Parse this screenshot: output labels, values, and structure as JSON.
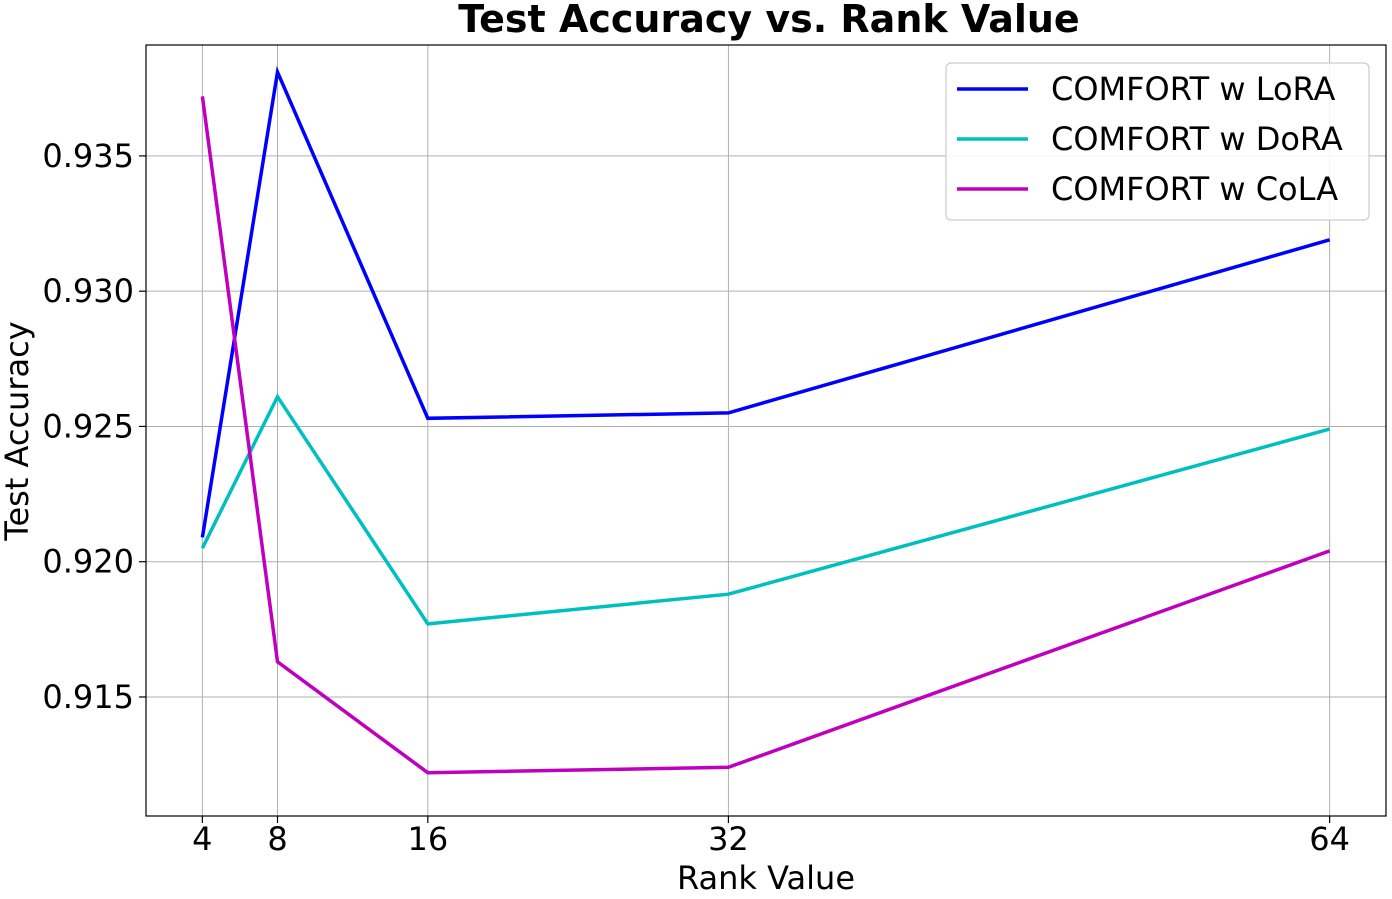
{
  "chart_data": {
    "type": "line",
    "title": "Test Accuracy vs. Rank Value",
    "xlabel": "Rank Value",
    "ylabel": "Test Accuracy",
    "x": [
      4,
      8,
      16,
      32,
      64
    ],
    "xticks": [
      "4",
      "8",
      "16",
      "32",
      "64"
    ],
    "yticks": [
      0.915,
      0.92,
      0.925,
      0.93,
      0.935
    ],
    "ytick_labels": [
      "0.915",
      "0.920",
      "0.925",
      "0.930",
      "0.935"
    ],
    "xlim": [
      1,
      67
    ],
    "ylim": [
      0.9106,
      0.9391
    ],
    "grid": true,
    "legend_position": "top-right",
    "series": [
      {
        "name": "COMFORT w LoRA",
        "color": "#0000ff",
        "values": [
          0.9209,
          0.9381,
          0.9253,
          0.9255,
          0.9319
        ]
      },
      {
        "name": "COMFORT w DoRA",
        "color": "#00bfbf",
        "values": [
          0.9205,
          0.9261,
          0.9177,
          0.9188,
          0.9249
        ]
      },
      {
        "name": "COMFORT w CoLA",
        "color": "#bf00bf",
        "values": [
          0.9372,
          0.9163,
          0.9122,
          0.9124,
          0.9204
        ]
      }
    ]
  }
}
